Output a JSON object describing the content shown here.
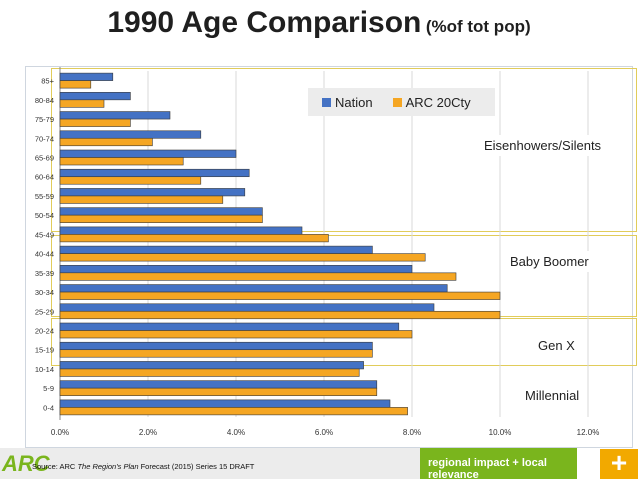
{
  "title": {
    "main": "1990 Age Comparison",
    "sub": "(%of tot pop)"
  },
  "legend": {
    "nation": "Nation",
    "arc": "ARC 20Cty"
  },
  "colors": {
    "nation": "#4472c4",
    "arc": "#f5a623",
    "grid": "#d9d9d9",
    "group_border": "#e1cc5a",
    "brand_green": "#7ab51d",
    "accent_orange": "#f2a900"
  },
  "annotations": {
    "eisenhowers": "Eisenhowers/Silents",
    "baby_boomer": "Baby Boomer",
    "gen_x": "Gen X",
    "millennial": "Millennial"
  },
  "footer": {
    "logo": "ARC",
    "source_prefix": "Source: ARC ",
    "source_italic": "The Region's Plan",
    "source_suffix": " Forecast (2015) Series 15 DRAFT",
    "tagline": "regional impact + local relevance",
    "plus": "+"
  },
  "chart_data": {
    "type": "bar",
    "orientation": "horizontal",
    "categories": [
      "0-4",
      "5-9",
      "10-14",
      "15-19",
      "20-24",
      "25-29",
      "30-34",
      "35-39",
      "40-44",
      "45-49",
      "50-54",
      "55-59",
      "60-64",
      "65-69",
      "70-74",
      "75-79",
      "80-84",
      "85+"
    ],
    "series": [
      {
        "name": "Nation",
        "values": [
          7.5,
          7.2,
          6.9,
          7.1,
          7.7,
          8.5,
          8.8,
          8.0,
          7.1,
          5.5,
          4.6,
          4.2,
          4.3,
          4.0,
          3.2,
          2.5,
          1.6,
          1.2
        ]
      },
      {
        "name": "ARC 20Cty",
        "values": [
          7.9,
          7.2,
          6.8,
          7.1,
          8.0,
          10.0,
          10.0,
          9.0,
          8.3,
          6.1,
          4.6,
          3.7,
          3.2,
          2.8,
          2.1,
          1.6,
          1.0,
          0.7
        ]
      }
    ],
    "xlim": [
      0,
      12
    ],
    "xticks": [
      "0.0%",
      "2.0%",
      "4.0%",
      "6.0%",
      "8.0%",
      "10.0%",
      "12.0%"
    ],
    "grid": true,
    "legend_position": "top-right"
  }
}
